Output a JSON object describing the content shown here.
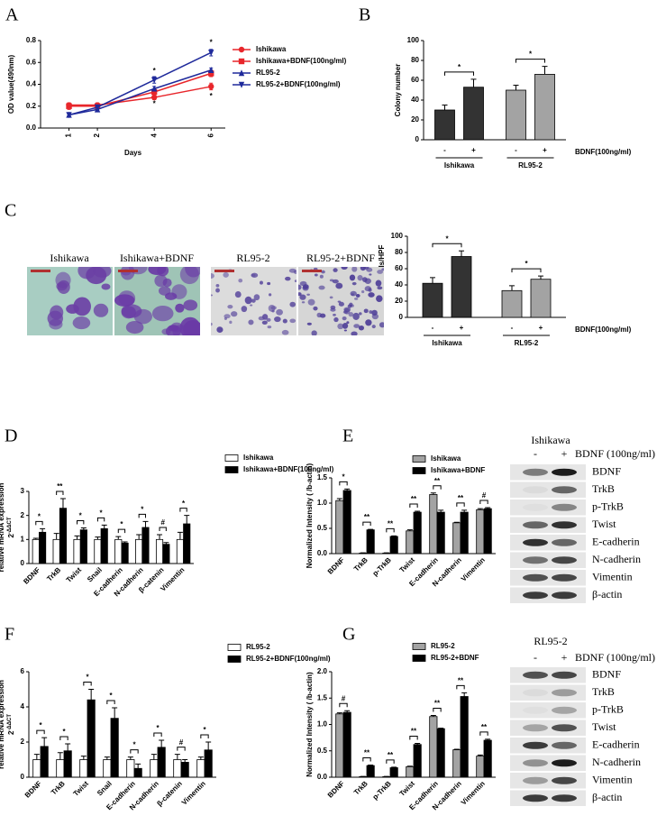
{
  "chart_data": [
    {
      "type": "line",
      "x": [
        1,
        2,
        4,
        6
      ],
      "xlim": [
        0,
        6.5
      ],
      "xticks": [
        1,
        2,
        4,
        6
      ],
      "xlabel": "Days",
      "ylabel": "OD value(490nm)",
      "ylim": [
        0,
        0.8
      ],
      "yticks": [
        {
          "value": 0,
          "label": "0.0"
        },
        0.2,
        0.4,
        0.6,
        0.8
      ],
      "series": [
        {
          "name": "Ishikawa",
          "color": "#e8262b",
          "marker": "circle",
          "values": [
            0.21,
            0.21,
            0.28,
            0.38
          ],
          "errors": [
            0.02,
            0.02,
            0.02,
            0.03
          ]
        },
        {
          "name": "Ishikawa+BDNF(100ng/ml)",
          "color": "#e8262b",
          "marker": "square",
          "values": [
            0.2,
            0.2,
            0.33,
            0.5
          ],
          "errors": [
            0.03,
            0.02,
            0.02,
            0.03
          ]
        },
        {
          "name": "RL95-2",
          "color": "#1f2a9b",
          "marker": "triangle-up",
          "values": [
            0.12,
            0.17,
            0.36,
            0.53
          ],
          "errors": [
            0.01,
            0.02,
            0.02,
            0.02
          ]
        },
        {
          "name": "RL95-2+BDNF(100ng/ml)",
          "color": "#1f2a9b",
          "marker": "triangle-down",
          "values": [
            0.12,
            0.19,
            0.44,
            0.69
          ],
          "errors": [
            0.01,
            0.02,
            0.03,
            0.03
          ]
        }
      ],
      "annotations": [
        {
          "text": "*",
          "x": 4,
          "y": 0.52
        },
        {
          "text": "*",
          "x": 4,
          "y": 0.22
        },
        {
          "text": "*",
          "x": 6,
          "y": 0.78
        },
        {
          "text": "*",
          "x": 6,
          "y": 0.29
        }
      ]
    },
    {
      "type": "bar",
      "ylabel": "Colony number",
      "ylim": [
        0,
        100
      ],
      "yticks": [
        0,
        20,
        40,
        60,
        80,
        100
      ],
      "categories": [
        "-",
        "+",
        "-",
        "+"
      ],
      "groups": [
        "Ishikawa",
        "RL95-2"
      ],
      "colors": [
        "#333333",
        "#a3a3a3"
      ],
      "values": [
        30,
        53,
        50,
        66
      ],
      "errors": [
        5,
        8,
        5,
        8
      ],
      "significance": [
        "*",
        "*"
      ],
      "group_label": "BDNF(100ng/ml)"
    },
    {
      "type": "bar",
      "ylabel": "Invasion cells/HPF",
      "ylim": [
        0,
        100
      ],
      "yticks": [
        0,
        20,
        40,
        60,
        80,
        100
      ],
      "categories": [
        "-",
        "+",
        "-",
        "+"
      ],
      "groups": [
        "Ishikawa",
        "RL95-2"
      ],
      "colors": [
        "#333333",
        "#a3a3a3"
      ],
      "values": [
        42,
        75,
        33,
        47
      ],
      "errors": [
        7,
        7,
        6,
        4
      ],
      "significance": [
        "*",
        "*"
      ],
      "group_label": "BDNF(100ng/ml)"
    },
    {
      "type": "bar",
      "ylabel": "relative mRNA expression",
      "ylabel_formula": {
        "base": "2",
        "exponent": "-ΔΔCT"
      },
      "ylim": [
        0,
        3
      ],
      "yticks": [
        0,
        1,
        2,
        3
      ],
      "categories": [
        "BDNF",
        "TrkB",
        "Twist",
        "Snail",
        "E-cadherin",
        "N-cadherin",
        "β-catenin",
        "Vimentin"
      ],
      "series": [
        {
          "name": "Ishikawa",
          "color": "#ffffff",
          "values": [
            1,
            1,
            1,
            1,
            1,
            1,
            1,
            1
          ],
          "errors": [
            0.05,
            0.25,
            0.15,
            0.1,
            0.12,
            0.2,
            0.2,
            0.3
          ]
        },
        {
          "name": "Ishikawa+BDNF(100ng/ml)",
          "color": "#000000",
          "values": [
            1.3,
            2.3,
            1.4,
            1.45,
            0.85,
            1.5,
            0.8,
            1.65
          ],
          "errors": [
            0.15,
            0.4,
            0.08,
            0.15,
            0.05,
            0.25,
            0.07,
            0.35
          ]
        }
      ],
      "significance": [
        "*",
        "**",
        "*",
        "*",
        "*",
        "*",
        "#",
        "*"
      ]
    },
    {
      "type": "bar",
      "ylabel": "Normalized Intensity ( /b-actin)",
      "ylim": [
        0,
        1.5
      ],
      "yticks": [
        {
          "value": 0,
          "label": "0.0"
        },
        0.5,
        {
          "value": 1,
          "label": "1.0"
        },
        1.5
      ],
      "categories": [
        "BDNF",
        "TrkB",
        "p-TrkB",
        "Twist",
        "E-cadherin",
        "N-cadherin",
        "Vimentin"
      ],
      "series": [
        {
          "name": "Ishikawa",
          "color": "#a3a3a3",
          "values": [
            1.05,
            0.01,
            0.01,
            0.45,
            1.17,
            0.61,
            0.87
          ],
          "errors": [
            0.04,
            0.005,
            0.005,
            0.02,
            0.03,
            0.01,
            0.02
          ]
        },
        {
          "name": "Ishikawa+BDNF",
          "color": "#000000",
          "values": [
            1.25,
            0.47,
            0.34,
            0.82,
            0.82,
            0.82,
            0.89
          ],
          "errors": [
            0.03,
            0.01,
            0.01,
            0.02,
            0.04,
            0.04,
            0.02
          ]
        }
      ],
      "significance": [
        "*",
        "**",
        "**",
        "**",
        "**",
        "**",
        "#"
      ]
    },
    {
      "type": "bar",
      "ylabel": "relative mRNA expression",
      "ylabel_formula": {
        "base": "2",
        "exponent": "-ΔΔCT"
      },
      "ylim": [
        0,
        6
      ],
      "yticks": [
        0,
        2,
        4,
        6
      ],
      "categories": [
        "BDNF",
        "TrkB",
        "Twist",
        "Snail",
        "E-cadherin",
        "N-cadherin",
        "β-catenin",
        "Vimentin"
      ],
      "series": [
        {
          "name": "RL95-2",
          "color": "#ffffff",
          "values": [
            1,
            1,
            1,
            1,
            1,
            1,
            1,
            1
          ],
          "errors": [
            0.3,
            0.4,
            0.2,
            0.15,
            0.15,
            0.3,
            0.3,
            0.15
          ]
        },
        {
          "name": "RL95-2+BDNF(100ng/ml)",
          "color": "#000000",
          "values": [
            1.75,
            1.5,
            4.4,
            3.35,
            0.5,
            1.7,
            0.85,
            1.55
          ],
          "errors": [
            0.5,
            0.4,
            0.6,
            0.6,
            0.25,
            0.4,
            0.15,
            0.45
          ]
        }
      ],
      "significance": [
        "*",
        "*",
        "*",
        "*",
        "*",
        "*",
        "#",
        "*"
      ]
    },
    {
      "type": "bar",
      "ylabel": "Normalized Intensity ( /b-actin)",
      "ylim": [
        0,
        2
      ],
      "yticks": [
        {
          "value": 0,
          "label": "0.0"
        },
        0.5,
        {
          "value": 1,
          "label": "1.0"
        },
        1.5,
        {
          "value": 2,
          "label": "2.0"
        }
      ],
      "categories": [
        "BDNF",
        "TrkB",
        "p-TrkB",
        "Twist",
        "E-cadherin",
        "N-cadherin",
        "Vimentin"
      ],
      "series": [
        {
          "name": "RL95-2",
          "color": "#a3a3a3",
          "values": [
            1.2,
            0.01,
            0.01,
            0.2,
            1.15,
            0.52,
            0.4
          ],
          "errors": [
            0.02,
            0.005,
            0.005,
            0.01,
            0.02,
            0.01,
            0.02
          ]
        },
        {
          "name": "RL95-2+BDNF",
          "color": "#000000",
          "values": [
            1.23,
            0.22,
            0.18,
            0.62,
            0.92,
            1.53,
            0.7
          ],
          "errors": [
            0.03,
            0.01,
            0.01,
            0.02,
            0.01,
            0.07,
            0.02
          ]
        }
      ],
      "significance": [
        "#",
        "**",
        "**",
        "**",
        "**",
        "**",
        "**"
      ]
    }
  ],
  "panels": [
    "A",
    "B",
    "C",
    "D",
    "E",
    "F",
    "G"
  ],
  "images": [
    "Ishikawa",
    "Ishikawa+BDNF",
    "RL95-2",
    "RL95-2+BDNF"
  ],
  "blots": [
    {
      "title": "Ishikawa",
      "lanes": [
        "-",
        "+"
      ],
      "treatment": "BDNF (100ng/ml)",
      "rows": [
        "BDNF",
        "TrkB",
        "p-TrkB",
        "Twist",
        "E-cadherin",
        "N-cadherin",
        "Vimentin",
        "β-actin"
      ]
    },
    {
      "title": "RL95-2",
      "lanes": [
        "-",
        "+"
      ],
      "treatment": "BDNF (100ng/ml)",
      "rows": [
        "BDNF",
        "TrkB",
        "p-TrkB",
        "Twist",
        "E-cadherin",
        "N-cadherin",
        "Vimentin",
        "β-actin"
      ]
    }
  ]
}
